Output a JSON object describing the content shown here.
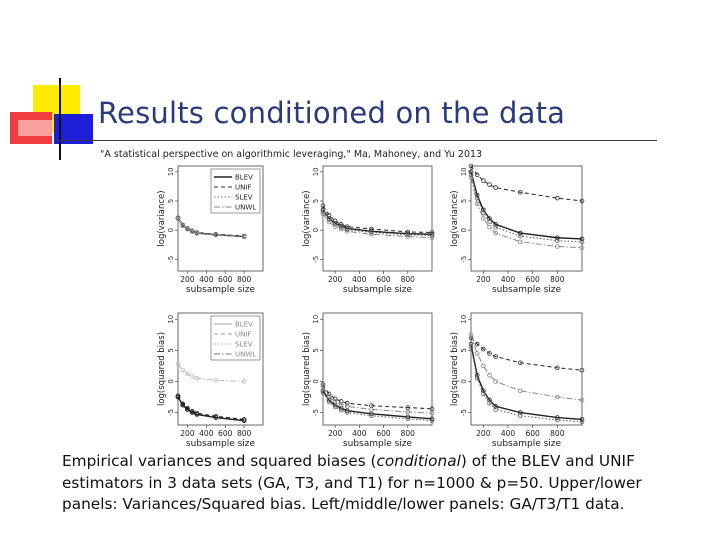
{
  "title": "Results conditioned on the data",
  "citation": "\"A statistical perspective on algorithmic leveraging,\" Ma, Mahoney, and Yu 2013",
  "caption": {
    "line1_a": "Empirical variances and squared biases (",
    "line1_em": "conditional",
    "line1_b": ") of the BLEV and UNIF",
    "line2": "estimators in 3 data sets (GA, T3, and T1) for n=1000 & p=50.  Upper/lower",
    "line3": "panels: Variances/Squared bias.  Left/middle/lower panels: GA/T3/T1 data."
  },
  "colors": {
    "title": "#2a3a7c",
    "deco_yellow": "#ffea00",
    "deco_red": "#f03c3c",
    "deco_blue": "#1e1ed8"
  },
  "chart_data": [
    {
      "type": "line",
      "panel": "top-left",
      "ylabel": "log(variance)",
      "xlabel": "subsample size",
      "xticks": [
        200,
        400,
        600,
        800
      ],
      "yticks": [
        -5,
        0,
        5,
        10
      ],
      "xlim": [
        100,
        1000
      ],
      "ylim": [
        -7,
        11
      ],
      "legend": [
        "BLEV",
        "UNIF",
        "SLEV",
        "UNWL"
      ],
      "legend_position": "top-right",
      "series": [
        {
          "name": "BLEV",
          "x": [
            100,
            150,
            200,
            250,
            300,
            500,
            800
          ],
          "y": [
            2,
            0.8,
            0.2,
            -0.2,
            -0.5,
            -0.8,
            -1.1
          ]
        },
        {
          "name": "UNIF",
          "x": [
            100,
            150,
            200,
            250,
            300,
            500,
            800
          ],
          "y": [
            2.1,
            0.9,
            0.3,
            -0.1,
            -0.4,
            -0.7,
            -1.0
          ]
        },
        {
          "name": "SLEV",
          "x": [
            100,
            150,
            200,
            250,
            300,
            500,
            800
          ],
          "y": [
            2,
            0.8,
            0.2,
            -0.2,
            -0.5,
            -0.8,
            -1.1
          ]
        },
        {
          "name": "UNWL",
          "x": [
            100,
            150,
            200,
            250,
            300,
            500,
            800
          ],
          "y": [
            2,
            0.8,
            0.2,
            -0.2,
            -0.5,
            -0.8,
            -1.1
          ]
        }
      ]
    },
    {
      "type": "line",
      "panel": "top-middle",
      "ylabel": "log(variance)",
      "xlabel": "subsample size",
      "xticks": [
        200,
        400,
        600,
        800
      ],
      "yticks": [
        -5,
        0,
        5,
        10
      ],
      "xlim": [
        100,
        1000
      ],
      "ylim": [
        -7,
        11
      ],
      "series": [
        {
          "name": "BLEV",
          "x": [
            100,
            150,
            200,
            250,
            300,
            500,
            800,
            1000
          ],
          "y": [
            3.5,
            2,
            1.2,
            0.7,
            0.3,
            -0.2,
            -0.6,
            -0.7
          ]
        },
        {
          "name": "UNIF",
          "x": [
            100,
            150,
            200,
            250,
            300,
            500,
            800,
            1000
          ],
          "y": [
            4.2,
            2.6,
            1.6,
            1.0,
            0.6,
            0.2,
            -0.3,
            -0.4
          ]
        },
        {
          "name": "SLEV",
          "x": [
            100,
            150,
            200,
            250,
            300,
            500,
            800,
            1000
          ],
          "y": [
            3.2,
            1.8,
            1.0,
            0.5,
            0.1,
            -0.4,
            -0.8,
            -0.9
          ]
        },
        {
          "name": "UNWL",
          "x": [
            100,
            150,
            200,
            250,
            300,
            500,
            800,
            1000
          ],
          "y": [
            2.8,
            1.4,
            0.6,
            0.2,
            -0.2,
            -0.7,
            -1.1,
            -1.3
          ]
        }
      ]
    },
    {
      "type": "line",
      "panel": "top-right",
      "ylabel": "log(variance)",
      "xlabel": "subsample size",
      "xticks": [
        200,
        400,
        600,
        800
      ],
      "yticks": [
        -5,
        0,
        5,
        10
      ],
      "xlim": [
        100,
        1000
      ],
      "ylim": [
        -7,
        11
      ],
      "series": [
        {
          "name": "BLEV",
          "x": [
            100,
            150,
            200,
            250,
            300,
            500,
            800,
            1000
          ],
          "y": [
            10,
            6,
            3.5,
            2,
            1,
            -0.5,
            -1.3,
            -1.5
          ]
        },
        {
          "name": "UNIF",
          "x": [
            100,
            150,
            200,
            250,
            300,
            500,
            800,
            1000
          ],
          "y": [
            11,
            9.5,
            8.5,
            7.8,
            7.3,
            6.5,
            5.5,
            5.0
          ]
        },
        {
          "name": "SLEV",
          "x": [
            100,
            150,
            200,
            250,
            300,
            500,
            800,
            1000
          ],
          "y": [
            9.5,
            5.5,
            3,
            1.5,
            0.5,
            -1,
            -1.8,
            -2.0
          ]
        },
        {
          "name": "UNWL",
          "x": [
            100,
            150,
            200,
            250,
            300,
            500,
            800,
            1000
          ],
          "y": [
            9,
            4.5,
            2,
            0.5,
            -0.5,
            -2,
            -2.8,
            -3.0
          ]
        }
      ]
    },
    {
      "type": "line",
      "panel": "bottom-left",
      "ylabel": "log(squared bias)",
      "xlabel": "subsample size",
      "xticks": [
        200,
        400,
        600,
        800
      ],
      "yticks": [
        -5,
        0,
        5,
        10
      ],
      "xlim": [
        100,
        1000
      ],
      "ylim": [
        -7,
        11
      ],
      "legend": [
        "BLEV",
        "UNIF",
        "SLEV",
        "UNWL"
      ],
      "legend_position": "top-right",
      "series": [
        {
          "name": "BLEV",
          "x": [
            100,
            150,
            200,
            250,
            300,
            500,
            800
          ],
          "y": [
            -2.5,
            -3.8,
            -4.5,
            -5,
            -5.3,
            -5.8,
            -6.3
          ]
        },
        {
          "name": "UNIF",
          "x": [
            100,
            150,
            200,
            250,
            300,
            500,
            800
          ],
          "y": [
            -2.3,
            -3.6,
            -4.3,
            -4.8,
            -5.1,
            -5.6,
            -6.1
          ]
        },
        {
          "name": "SLEV",
          "x": [
            100,
            150,
            200,
            250,
            300,
            500,
            800
          ],
          "y": [
            -2.5,
            -3.8,
            -4.5,
            -5,
            -5.3,
            -5.8,
            -6.3
          ]
        },
        {
          "name": "UNWL",
          "x": [
            100,
            150,
            200,
            250,
            300,
            500,
            800
          ],
          "y": [
            2.8,
            1.8,
            1.2,
            0.8,
            0.5,
            0.2,
            0
          ]
        }
      ]
    },
    {
      "type": "line",
      "panel": "bottom-middle",
      "ylabel": "log(squared bias)",
      "xlabel": "subsample size",
      "xticks": [
        200,
        400,
        600,
        800
      ],
      "yticks": [
        -5,
        0,
        5,
        10
      ],
      "xlim": [
        100,
        1000
      ],
      "ylim": [
        -7,
        11
      ],
      "series": [
        {
          "name": "BLEV",
          "x": [
            100,
            150,
            200,
            250,
            300,
            500,
            800,
            1000
          ],
          "y": [
            -1.5,
            -3,
            -3.8,
            -4.3,
            -4.7,
            -5.2,
            -5.7,
            -6.0
          ]
        },
        {
          "name": "UNIF",
          "x": [
            100,
            150,
            200,
            250,
            300,
            500,
            800,
            1000
          ],
          "y": [
            -0.5,
            -2,
            -2.8,
            -3.2,
            -3.5,
            -3.9,
            -4.2,
            -4.4
          ]
        },
        {
          "name": "SLEV",
          "x": [
            100,
            150,
            200,
            250,
            300,
            500,
            800,
            1000
          ],
          "y": [
            -1.8,
            -3.3,
            -4.1,
            -4.6,
            -5,
            -5.5,
            -6.0,
            -6.3
          ]
        },
        {
          "name": "UNWL",
          "x": [
            100,
            150,
            200,
            250,
            300,
            500,
            800,
            1000
          ],
          "y": [
            -0.8,
            -2.4,
            -3.2,
            -3.7,
            -4,
            -4.5,
            -4.9,
            -5.1
          ]
        }
      ]
    },
    {
      "type": "line",
      "panel": "bottom-right",
      "ylabel": "log(squared bias)",
      "xlabel": "subsample size",
      "xticks": [
        200,
        400,
        600,
        800
      ],
      "yticks": [
        -5,
        0,
        5,
        10
      ],
      "xlim": [
        100,
        1000
      ],
      "ylim": [
        -7,
        11
      ],
      "series": [
        {
          "name": "BLEV",
          "x": [
            100,
            150,
            200,
            250,
            300,
            500,
            800,
            1000
          ],
          "y": [
            6,
            1,
            -1.5,
            -3,
            -4,
            -5,
            -5.8,
            -6.1
          ]
        },
        {
          "name": "UNIF",
          "x": [
            100,
            150,
            200,
            250,
            300,
            500,
            800,
            1000
          ],
          "y": [
            7,
            6,
            5.2,
            4.5,
            4,
            3,
            2.2,
            1.8
          ]
        },
        {
          "name": "SLEV",
          "x": [
            100,
            150,
            200,
            250,
            300,
            500,
            800,
            1000
          ],
          "y": [
            5.5,
            0.5,
            -2,
            -3.5,
            -4.5,
            -5.5,
            -6.2,
            -6.5
          ]
        },
        {
          "name": "UNWL",
          "x": [
            100,
            150,
            200,
            250,
            300,
            500,
            800,
            1000
          ],
          "y": [
            7.5,
            4.5,
            2.5,
            1,
            0,
            -1.5,
            -2.5,
            -3.0
          ]
        }
      ]
    }
  ]
}
